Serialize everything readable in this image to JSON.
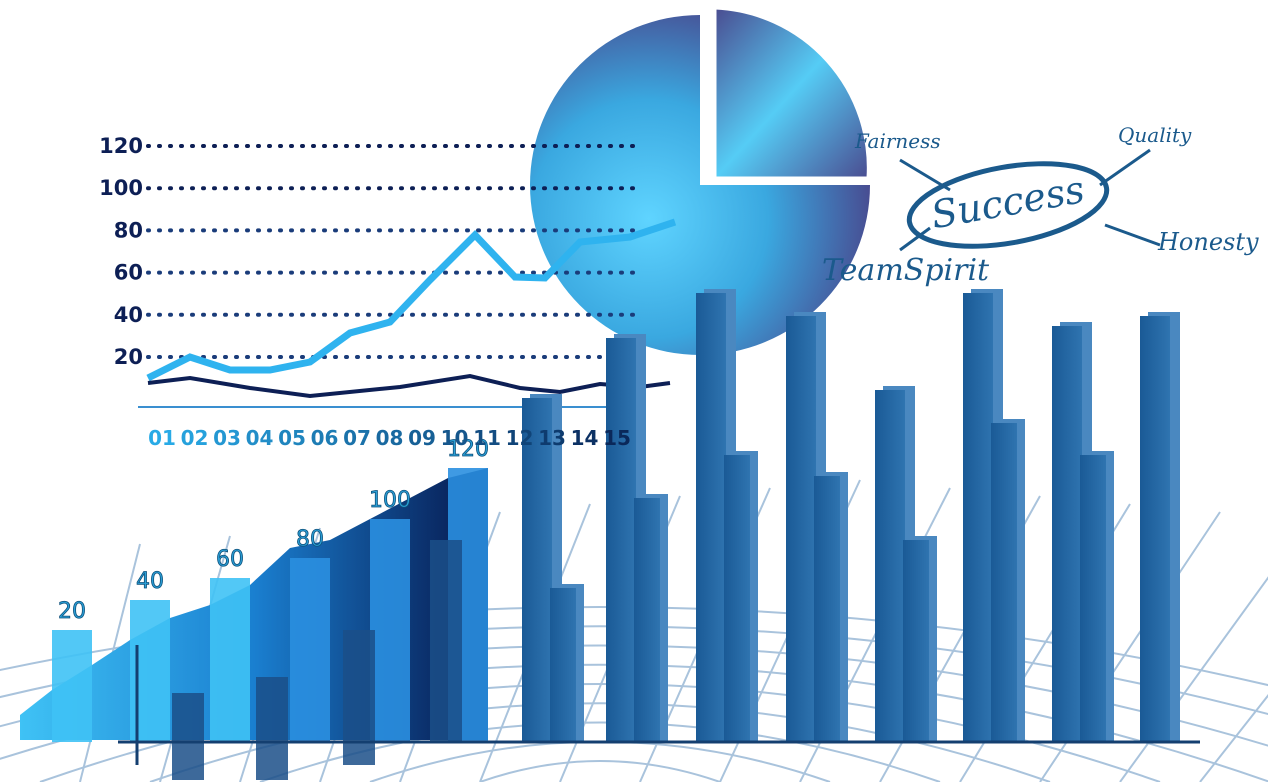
{
  "line_chart": {
    "yticks": [
      "120",
      "100",
      "80",
      "60",
      "40",
      "20"
    ],
    "xticks": [
      "01",
      "02",
      "03",
      "04",
      "05",
      "06",
      "07",
      "08",
      "09",
      "10",
      "11",
      "12",
      "13",
      "14",
      "15"
    ]
  },
  "bar_labels": [
    "20",
    "40",
    "60",
    "80",
    "100",
    "120"
  ],
  "mind_map": {
    "center": "Success",
    "words": [
      "Fairness",
      "Quality",
      "Honesty",
      "TeamSpirit"
    ]
  }
}
